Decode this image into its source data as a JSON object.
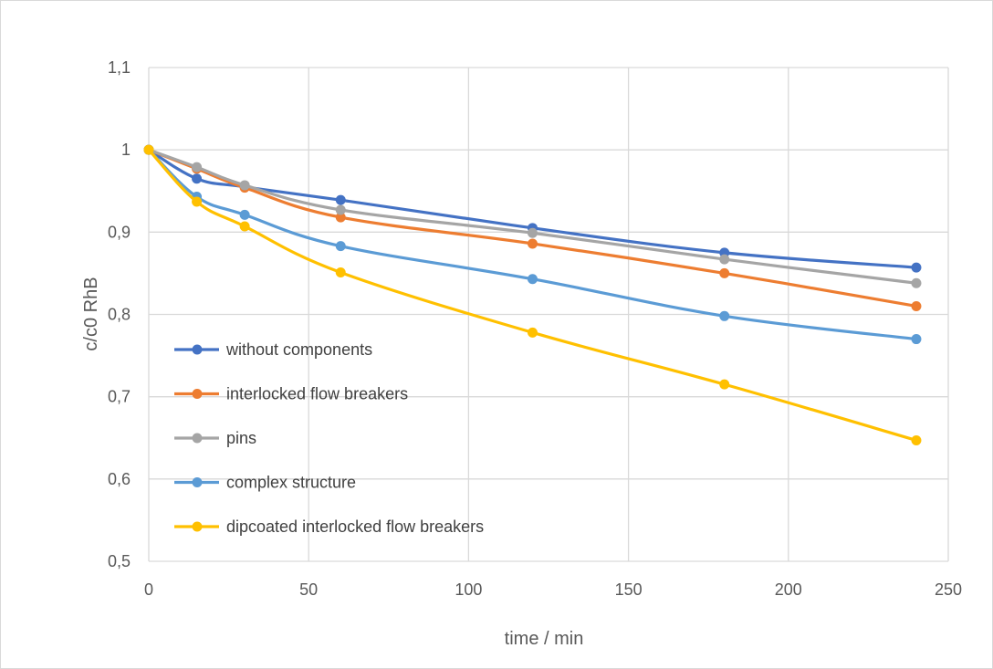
{
  "chart_data": {
    "type": "line",
    "title": "",
    "xlabel": "time / min",
    "ylabel": "c/c0 RhB",
    "xlim": [
      0,
      250
    ],
    "ylim": [
      0.5,
      1.1
    ],
    "x_ticks": [
      0,
      50,
      100,
      150,
      200,
      250
    ],
    "x_tick_labels": [
      "0",
      "50",
      "100",
      "150",
      "200",
      "250"
    ],
    "y_ticks": [
      0.5,
      0.6,
      0.7,
      0.8,
      0.9,
      1.0,
      1.1
    ],
    "y_tick_labels": [
      "0,5",
      "0,6",
      "0,7",
      "0,8",
      "0,9",
      "1",
      "1,1"
    ],
    "grid": true,
    "legend_position": "inside-left",
    "series": [
      {
        "name": "without components",
        "color": "#4472c4",
        "x": [
          0,
          15,
          30,
          60,
          120,
          180,
          240
        ],
        "y": [
          1.0,
          0.965,
          0.955,
          0.939,
          0.905,
          0.875,
          0.857
        ]
      },
      {
        "name": "interlocked flow breakers",
        "color": "#ed7d31",
        "x": [
          0,
          15,
          30,
          60,
          120,
          180,
          240
        ],
        "y": [
          1.0,
          0.977,
          0.954,
          0.918,
          0.886,
          0.85,
          0.81
        ]
      },
      {
        "name": "pins",
        "color": "#a5a5a5",
        "x": [
          0,
          15,
          30,
          60,
          120,
          180,
          240
        ],
        "y": [
          1.0,
          0.979,
          0.957,
          0.927,
          0.899,
          0.867,
          0.838
        ]
      },
      {
        "name": "complex structure",
        "color": "#5b9bd5",
        "x": [
          0,
          15,
          30,
          60,
          120,
          180,
          240
        ],
        "y": [
          1.0,
          0.943,
          0.921,
          0.883,
          0.843,
          0.798,
          0.77
        ]
      },
      {
        "name": "dipcoated interlocked flow breakers",
        "color": "#ffc000",
        "x": [
          0,
          15,
          30,
          60,
          120,
          180,
          240
        ],
        "y": [
          1.0,
          0.937,
          0.907,
          0.851,
          0.778,
          0.715,
          0.647
        ]
      }
    ]
  }
}
